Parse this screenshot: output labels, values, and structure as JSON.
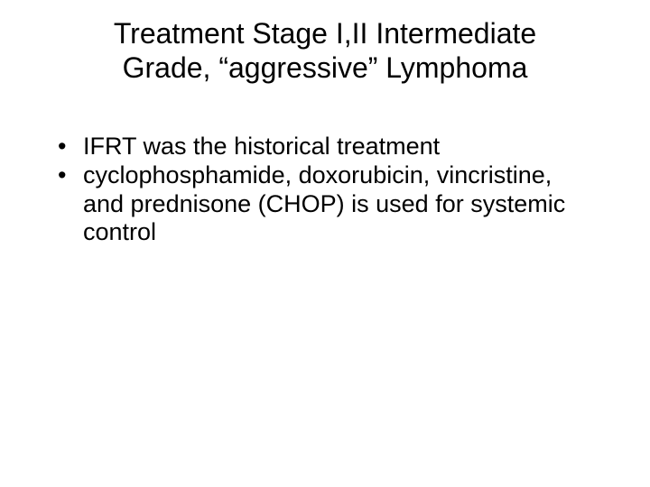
{
  "slide": {
    "title": "Treatment Stage I,II Intermediate Grade, “aggressive” Lymphoma",
    "bullets": [
      "IFRT was the historical treatment",
      "cyclophosphamide, doxorubicin, vincristine, and prednisone (CHOP) is used for systemic control"
    ],
    "background_color": "#ffffff",
    "text_color": "#000000",
    "title_fontsize": 32,
    "body_fontsize": 27,
    "font_family": "Arial"
  }
}
